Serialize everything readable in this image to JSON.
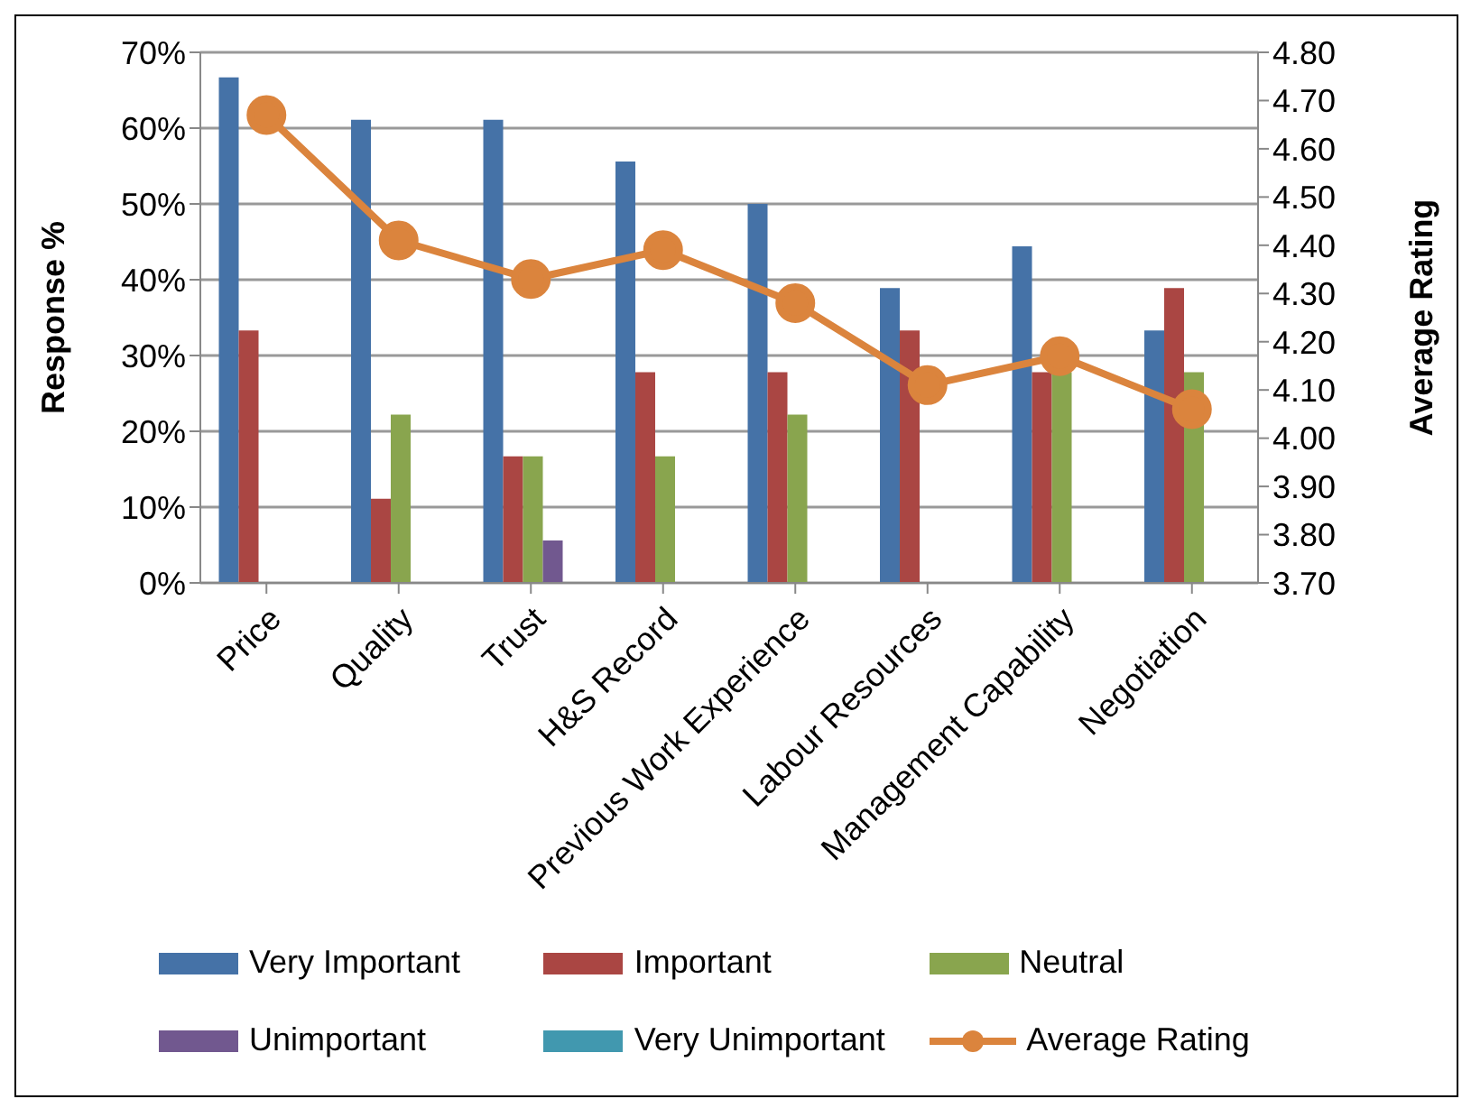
{
  "chart_data": {
    "type": "bar",
    "ylabel": "Response %",
    "y2label": "Average Rating",
    "categories": [
      "Price",
      "Quality",
      "Trust",
      "H&S Record",
      "Previous Work Experience",
      "Labour Resources",
      "Management Capability",
      "Negotiation"
    ],
    "series": [
      {
        "name": "Very Important",
        "color": "#4572a7",
        "values": [
          66.7,
          61.1,
          61.1,
          55.6,
          50,
          38.9,
          44.4,
          33.3
        ]
      },
      {
        "name": "Important",
        "color": "#aa4643",
        "values": [
          33.3,
          11.1,
          16.7,
          27.8,
          27.8,
          33.3,
          27.8,
          38.9
        ]
      },
      {
        "name": "Neutral",
        "color": "#89a54e",
        "values": [
          0,
          22.2,
          16.7,
          16.7,
          22.2,
          null,
          27.8,
          27.8
        ]
      },
      {
        "name": "Unimportant",
        "color": "#71588f",
        "values": [
          0,
          0,
          5.6,
          0,
          0,
          0,
          0,
          0
        ]
      },
      {
        "name": "Very Unimportant",
        "color": "#4198af",
        "values": [
          0,
          0,
          0,
          0,
          0,
          0,
          0,
          0
        ]
      },
      {
        "name": "Average Rating",
        "type": "line",
        "axis": "y2",
        "color": "#db843d",
        "marker": "circle",
        "values": [
          4.67,
          4.41,
          4.33,
          4.39,
          4.28,
          4.11,
          4.17,
          4.06
        ]
      }
    ],
    "ylim": [
      0,
      70
    ],
    "yticks": [
      {
        "value": 0,
        "label": "0%"
      },
      {
        "value": 10,
        "label": "10%"
      },
      {
        "value": 20,
        "label": "20%"
      },
      {
        "value": 30,
        "label": "30%"
      },
      {
        "value": 40,
        "label": "40%"
      },
      {
        "value": 50,
        "label": "50%"
      },
      {
        "value": 60,
        "label": "60%"
      },
      {
        "value": 70,
        "label": "70%"
      }
    ],
    "y2lim": [
      3.7,
      4.8
    ],
    "y2ticks": [
      {
        "value": 3.7,
        "label": "3.70"
      },
      {
        "value": 3.8,
        "label": "3.80"
      },
      {
        "value": 3.9,
        "label": "3.90"
      },
      {
        "value": 4.0,
        "label": "4.00"
      },
      {
        "value": 4.1,
        "label": "4.10"
      },
      {
        "value": 4.2,
        "label": "4.20"
      },
      {
        "value": 4.3,
        "label": "4.30"
      },
      {
        "value": 4.4,
        "label": "4.40"
      },
      {
        "value": 4.5,
        "label": "4.50"
      },
      {
        "value": 4.6,
        "label": "4.60"
      },
      {
        "value": 4.7,
        "label": "4.70"
      },
      {
        "value": 4.8,
        "label": "4.80"
      }
    ],
    "grid": "y",
    "legend": "bottom"
  }
}
